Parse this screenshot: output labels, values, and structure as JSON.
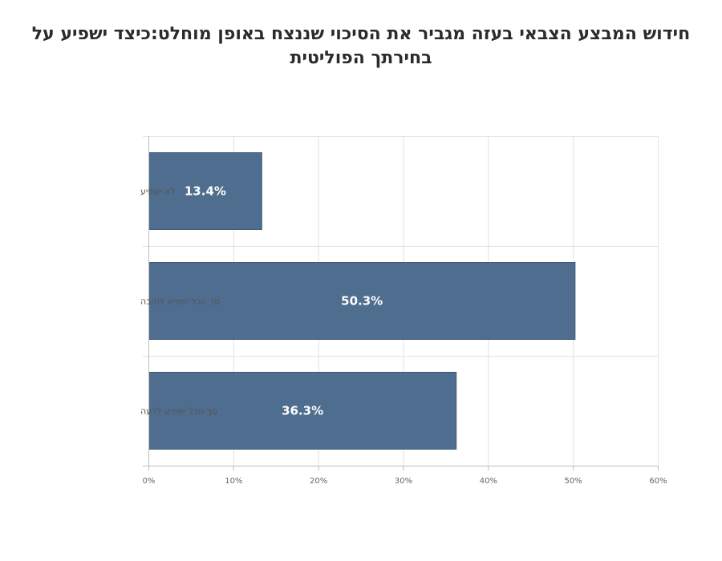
{
  "page": {
    "title_line1": "חידוש המבצע הצבאי בעזה מגביר את הסיכוי שננצח באופן מוחלט:כיצד ישפיע על",
    "title_line2": "בחירתך הפוליטית"
  },
  "colors": {
    "bar": "#4f6d8f",
    "bar_stroke": "#3e5a7a",
    "grid": "#e2e2e2",
    "axis": "#bdbdbd",
    "title": "#2b2b2b"
  },
  "chart_data": {
    "type": "bar",
    "orientation": "horizontal",
    "title": "חידוש המבצע הצבאי בעזה מגביר את הסיכוי שננצח באופן מוחלט:כיצד ישפיע על בחירתך הפוליטית",
    "xlabel": "",
    "ylabel": "",
    "categories": [
      "לא ישפיע",
      "סך הכל ישפיע לטובה",
      "סך הכל ישפיע לרעה"
    ],
    "values": [
      13.4,
      50.3,
      36.3
    ],
    "value_labels": [
      "13.4%",
      "50.3%",
      "36.3%"
    ],
    "xlim": [
      0,
      60
    ],
    "ticks": [
      0,
      10,
      20,
      30,
      40,
      50,
      60
    ],
    "tick_labels": [
      "0%",
      "10%",
      "20%",
      "30%",
      "40%",
      "50%",
      "60%"
    ],
    "grid": true,
    "legend": "none"
  }
}
